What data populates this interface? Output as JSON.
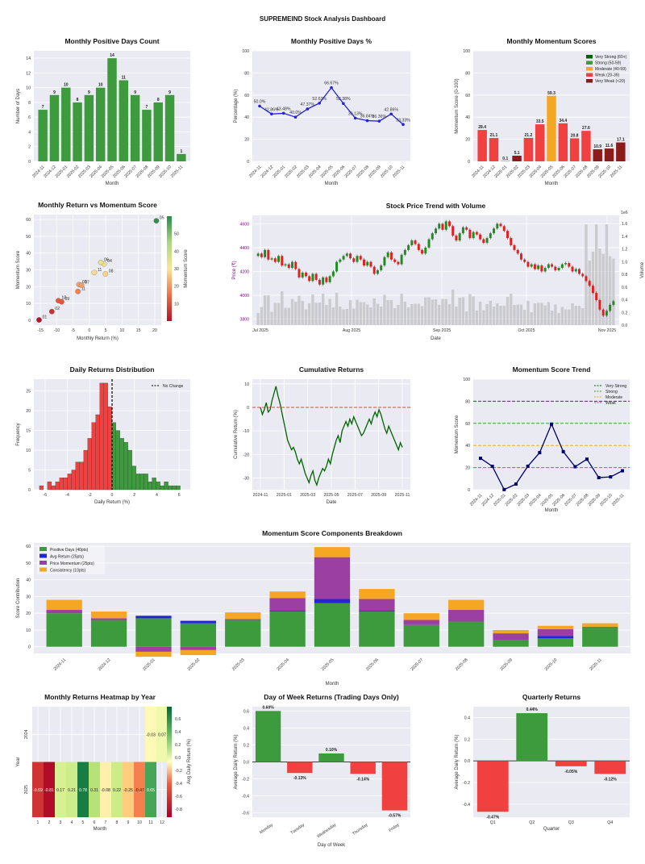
{
  "title": "SUPREMEIND Stock Analysis Dashboard",
  "colors": {
    "green": "#3d9a3d",
    "red": "#f04040",
    "orange": "#f5a623",
    "navy": "#00006e",
    "blue": "#2323d8",
    "purple": "#9b3fa3",
    "darkred": "#8b1a1a",
    "panel": "#eaeaf2"
  },
  "chart_data": [
    {
      "id": "pos_days",
      "type": "bar",
      "title": "Monthly Positive Days Count",
      "xlabel": "Month",
      "ylabel": "Number of Days",
      "categories": [
        "2024-11",
        "2024-12",
        "2025-01",
        "2025-02",
        "2025-03",
        "2025-04",
        "2025-05",
        "2025-06",
        "2025-07",
        "2025-08",
        "2025-09",
        "2025-10",
        "2025-11"
      ],
      "values": [
        7,
        9,
        10,
        8,
        9,
        10,
        14,
        11,
        9,
        7,
        8,
        9,
        1
      ],
      "ylim": [
        0,
        15
      ],
      "yticks": [
        0,
        2,
        4,
        6,
        8,
        10,
        12,
        14
      ]
    },
    {
      "id": "pos_pct",
      "type": "line",
      "title": "Monthly Positive Days %",
      "xlabel": "Month",
      "ylabel": "Percentage (%)",
      "categories": [
        "2024-11",
        "2024-12",
        "2025-01",
        "2025-02",
        "2025-03",
        "2025-04",
        "2025-05",
        "2025-06",
        "2025-07",
        "2025-08",
        "2025-09",
        "2025-10",
        "2025-11"
      ],
      "values": [
        50.0,
        42.86,
        43.48,
        40.0,
        47.37,
        52.63,
        66.67,
        52.38,
        39.13,
        36.84,
        36.36,
        42.86,
        33.33
      ],
      "labels": [
        "50.0%",
        "42.86%",
        "43.48%",
        "40.0%",
        "47.37%",
        "52.63%",
        "66.67%",
        "52.38%",
        "39.13%",
        "36.84%",
        "36.36%",
        "42.86%",
        "33.33%"
      ],
      "ylim": [
        0,
        100
      ],
      "yticks": [
        0,
        20,
        40,
        60,
        80,
        100
      ]
    },
    {
      "id": "mom_scores",
      "type": "bar",
      "title": "Monthly Momentum Scores",
      "xlabel": "Month",
      "ylabel": "Momentum Score (0-100)",
      "categories": [
        "2024-11",
        "2024-12",
        "2025-01",
        "2025-02",
        "2025-03",
        "2025-04",
        "2025-05",
        "2025-06",
        "2025-07",
        "2025-08",
        "2025-09",
        "2025-10",
        "2025-11"
      ],
      "values": [
        28.4,
        21.1,
        0.1,
        5.1,
        21.2,
        33.5,
        59.3,
        34.4,
        20.8,
        27.6,
        10.9,
        11.6,
        17.1
      ],
      "labels": [
        "28.4",
        "21.1",
        "0.1",
        "5.1",
        "21.2",
        "33.5",
        "59.3",
        "34.4",
        "20.8",
        "27.6",
        "10.9",
        "11.6",
        "17.1"
      ],
      "ylim": [
        0,
        100
      ],
      "yticks": [
        0,
        20,
        40,
        60,
        80,
        100
      ],
      "legend": [
        "Very Strong (60+)",
        "Strong (50-59)",
        "Moderate (40-59)",
        "Weak (20-39)",
        "Very Weak (<20)"
      ],
      "legend_colors": [
        "#006400",
        "#3d9a3d",
        "#f5a623",
        "#f04040",
        "#8b1a1a"
      ]
    },
    {
      "id": "scatter",
      "type": "scatter",
      "title": "Monthly Return vs Momentum Score",
      "xlabel": "Monthly Return (%)",
      "ylabel": "Momentum Score",
      "colorbar_label": "Momentum Score",
      "points": [
        {
          "x": -15.4,
          "y": 0.1,
          "label": "01"
        },
        {
          "x": -11.5,
          "y": 5.1,
          "label": "02"
        },
        {
          "x": -9.5,
          "y": 11.6,
          "label": "10"
        },
        {
          "x": -8.5,
          "y": 10.9,
          "label": "09"
        },
        {
          "x": -3.5,
          "y": 17.1,
          "label": "11"
        },
        {
          "x": -3.2,
          "y": 21.2,
          "label": "03"
        },
        {
          "x": -2.4,
          "y": 20.8,
          "label": "07"
        },
        {
          "x": 1.5,
          "y": 28.4,
          "label": "11"
        },
        {
          "x": 4.5,
          "y": 33.5,
          "label": "04"
        },
        {
          "x": 4.9,
          "y": 27.6,
          "label": "08"
        },
        {
          "x": 3.5,
          "y": 34.4,
          "label": "06"
        },
        {
          "x": 20.5,
          "y": 59.3,
          "label": "05"
        }
      ],
      "xticks": [
        -15,
        -10,
        -5,
        0,
        5,
        10,
        15,
        20
      ],
      "yticks": [
        0,
        10,
        20,
        30,
        40,
        50,
        60
      ],
      "cbticks": [
        10,
        20,
        30,
        40,
        50
      ],
      "xlim": [
        -17,
        22
      ],
      "ylim": [
        -3,
        63
      ]
    },
    {
      "id": "price",
      "type": "candlestick",
      "title": "Stock Price Trend with Volume",
      "xlabel": "Date",
      "ylabel": "Price (₹)",
      "ylabel2": "Volume",
      "y2_exp": "1e6",
      "yticks": [
        3800,
        4000,
        4200,
        4400,
        4600
      ],
      "ylim": [
        3750,
        4670
      ],
      "y2ticks": [
        "0.0",
        "0.2",
        "0.4",
        "0.6",
        "0.8",
        "1.0",
        "1.2",
        "1.4",
        "1.6"
      ],
      "xticks": [
        "Jul 2025",
        "Aug 2025",
        "Sep 2025",
        "Oct 2025",
        "Nov 2025"
      ],
      "closes": [
        4350,
        4320,
        4380,
        4300,
        4310,
        4280,
        4330,
        4250,
        4260,
        4230,
        4280,
        4220,
        4150,
        4190,
        4160,
        4120,
        4180,
        4130,
        4090,
        4150,
        4110,
        4160,
        4200,
        4280,
        4300,
        4330,
        4350,
        4310,
        4280,
        4330,
        4300,
        4250,
        4280,
        4240,
        4180,
        4210,
        4250,
        4320,
        4360,
        4300,
        4280,
        4260,
        4340,
        4380,
        4420,
        4460,
        4430,
        4380,
        4350,
        4400,
        4470,
        4520,
        4560,
        4600,
        4550,
        4620,
        4580,
        4500,
        4460,
        4520,
        4570,
        4550,
        4480,
        4530,
        4510,
        4470,
        4440,
        4480,
        4520,
        4560,
        4600,
        4580,
        4540,
        4480,
        4420,
        4380,
        4350,
        4300,
        4280,
        4240,
        4260,
        4220,
        4250,
        4200,
        4230,
        4260,
        4240,
        4210,
        4230,
        4260,
        4270,
        4240,
        4200,
        4220,
        4180,
        4160,
        4120,
        4080,
        4020,
        3960,
        3880,
        3830,
        3870,
        3920,
        3950
      ]
    },
    {
      "id": "ret_dist",
      "type": "histogram",
      "title": "Daily Returns Distribution",
      "xlabel": "Daily Return (%)",
      "ylabel": "Frequency",
      "legend": "No Change",
      "bins_start": -6.5,
      "bin_width": 0.36,
      "counts": [
        1,
        0,
        2,
        1,
        2,
        3,
        3,
        4,
        5,
        7,
        7,
        10,
        13,
        17,
        19,
        27,
        27,
        21,
        17,
        15,
        13,
        12,
        10,
        6,
        4,
        4,
        4,
        2,
        3,
        2,
        1,
        2,
        1,
        1,
        1
      ],
      "xticks": [
        -6,
        -4,
        -2,
        0,
        2,
        4,
        6
      ],
      "yticks": [
        0,
        5,
        10,
        15,
        20,
        25
      ],
      "xlim": [
        -7,
        7
      ],
      "ylim": [
        0,
        28
      ]
    },
    {
      "id": "cumret",
      "type": "line",
      "title": "Cumulative Returns",
      "xlabel": "Date",
      "ylabel": "Cumulative Return (%)",
      "xticks": [
        "2024-11",
        "2025-01",
        "2025-03",
        "2025-05",
        "2025-07",
        "2025-09",
        "2025-11"
      ],
      "yticks": [
        -30,
        -20,
        -10,
        0,
        10
      ],
      "ylim": [
        -35,
        12
      ],
      "values": [
        0,
        -3,
        -1,
        2,
        -2,
        -1,
        3,
        6,
        9,
        5,
        2,
        -2,
        -6,
        -10,
        -14,
        -16,
        -18,
        -17,
        -19,
        -22,
        -24,
        -22,
        -25,
        -28,
        -30,
        -32,
        -29,
        -27,
        -31,
        -33,
        -30,
        -28,
        -26,
        -27,
        -25,
        -22,
        -24,
        -20,
        -17,
        -14,
        -12,
        -15,
        -10,
        -8,
        -6,
        -8,
        -5,
        -7,
        -4,
        -6,
        -8,
        -10,
        -12,
        -11,
        -9,
        -7,
        -5,
        -7,
        -4,
        -2,
        -4,
        -1,
        -3,
        -6,
        -9,
        -11,
        -8,
        -10,
        -12,
        -14,
        -16,
        -18,
        -15,
        -17
      ]
    },
    {
      "id": "mom_trend",
      "type": "line",
      "title": "Momentum Score Trend",
      "xlabel": "Month",
      "ylabel": "Momentum Score",
      "categories": [
        "2024-11",
        "2024-12",
        "2025-01",
        "2025-02",
        "2025-03",
        "2025-04",
        "2025-05",
        "2025-06",
        "2025-07",
        "2025-08",
        "2025-09",
        "2025-10",
        "2025-11"
      ],
      "values": [
        28.4,
        21.1,
        0.1,
        5.1,
        21.2,
        33.5,
        59.3,
        34.4,
        20.8,
        27.6,
        10.9,
        11.6,
        17.1
      ],
      "ylim": [
        0,
        100
      ],
      "yticks": [
        0,
        20,
        40,
        60,
        80,
        100
      ],
      "thresholds": [
        {
          "name": "Very Strong",
          "value": 80,
          "color": "#006400"
        },
        {
          "name": "Strong",
          "value": 60,
          "color": "#3d9a3d"
        },
        {
          "name": "Moderate",
          "value": 40,
          "color": "#f5a623"
        },
        {
          "name": "Weak",
          "value": 20,
          "color": "#f04040"
        }
      ]
    },
    {
      "id": "components",
      "type": "stacked_bar",
      "title": "Momentum Score Components Breakdown",
      "xlabel": "Month",
      "ylabel": "Score Contribution",
      "categories": [
        "2024-11",
        "2024-12",
        "2025-01",
        "2025-02",
        "2025-03",
        "2025-04",
        "2025-05",
        "2025-06",
        "2025-07",
        "2025-08",
        "2025-09",
        "2025-10",
        "2025-11"
      ],
      "series": [
        {
          "name": "Positive Days (40pts)",
          "color": "#3d9a3d",
          "values": [
            20,
            16,
            17,
            14,
            16,
            21,
            26,
            21,
            13,
            15,
            4,
            5,
            12
          ]
        },
        {
          "name": "Avg Return (25pts)",
          "color": "#2323d8",
          "values": [
            0,
            0,
            1.5,
            1.5,
            0,
            0.5,
            2.5,
            0.5,
            0,
            0,
            0,
            1.5,
            0
          ]
        },
        {
          "name": "Price Momentum (25pts)",
          "color": "#9b3fa3",
          "values": [
            2,
            1,
            -3,
            -2,
            0.5,
            7.5,
            25,
            7,
            3,
            7,
            4,
            4,
            0
          ]
        },
        {
          "name": "Consistency (10pts)",
          "color": "#f5a623",
          "values": [
            6,
            4,
            -3,
            -3,
            4,
            4,
            6,
            6,
            4,
            6,
            2,
            2,
            2
          ]
        }
      ],
      "yticks": [
        0,
        10,
        20,
        30,
        40,
        50,
        60
      ],
      "ylim": [
        -4,
        62
      ]
    },
    {
      "id": "heatmap",
      "type": "heatmap",
      "title": "Monthly Returns Heatmap by Year",
      "xlabel": "Month",
      "ylabel": "Year",
      "colorbar_label": "Avg Daily Return (%)",
      "rows": [
        "2024",
        "2025"
      ],
      "cols": [
        "1",
        "2",
        "3",
        "4",
        "5",
        "6",
        "7",
        "8",
        "9",
        "10",
        "11",
        "12"
      ],
      "values": [
        [
          null,
          null,
          null,
          null,
          null,
          null,
          null,
          null,
          null,
          null,
          -0.03,
          0.07
        ],
        [
          -0.69,
          -0.81,
          0.17,
          0.21,
          0.78,
          0.31,
          -0.08,
          0.22,
          -0.25,
          -0.47,
          0.65,
          null
        ]
      ],
      "labels": [
        [
          "",
          "",
          "",
          "",
          "",
          "",
          "",
          "",
          "",
          "",
          "-0.03",
          "0.07"
        ],
        [
          "-0.69",
          "-0.81",
          "0.17",
          "0.21",
          "0.78",
          "0.31",
          "-0.08",
          "0.22",
          "-0.25",
          "-0.47",
          "0.65",
          ""
        ]
      ],
      "cbticks": [
        "0.6",
        "0.4",
        "0.2",
        "0.0",
        "-0.2",
        "-0.4",
        "-0.6",
        "-0.8"
      ]
    },
    {
      "id": "dow",
      "type": "bar",
      "title": "Day of Week Returns (Trading Days Only)",
      "xlabel": "Day of Week",
      "ylabel": "Average Daily Return (%)",
      "categories": [
        "Monday",
        "Tuesday",
        "Wednesday",
        "Thursday",
        "Friday"
      ],
      "values": [
        0.6,
        -0.13,
        0.1,
        -0.14,
        -0.57
      ],
      "labels": [
        "0.60%",
        "-0.13%",
        "0.10%",
        "-0.14%",
        "-0.57%"
      ],
      "ylim": [
        -0.65,
        0.65
      ],
      "yticks": [
        -0.6,
        -0.4,
        -0.2,
        0.0,
        0.2,
        0.4,
        0.6
      ],
      "yticklabels": [
        "-0.6",
        "-0.4",
        "-0.2",
        "0.0",
        "0.2",
        "0.4",
        "0.6"
      ]
    },
    {
      "id": "quarterly",
      "type": "bar",
      "title": "Quarterly Returns",
      "xlabel": "Quarter",
      "ylabel": "Average Daily Return (%)",
      "categories": [
        "Q1",
        "Q2",
        "Q3",
        "Q4"
      ],
      "values": [
        -0.47,
        0.44,
        -0.05,
        -0.12
      ],
      "labels": [
        "-0.47%",
        "0.44%",
        "-0.05%",
        "-0.12%"
      ],
      "ylim": [
        -0.52,
        0.5
      ],
      "yticks": [
        -0.4,
        -0.2,
        0.0,
        0.2,
        0.4
      ],
      "yticklabels": [
        "-0.4",
        "-0.2",
        "0.0",
        "0.2",
        "0.4"
      ]
    }
  ]
}
